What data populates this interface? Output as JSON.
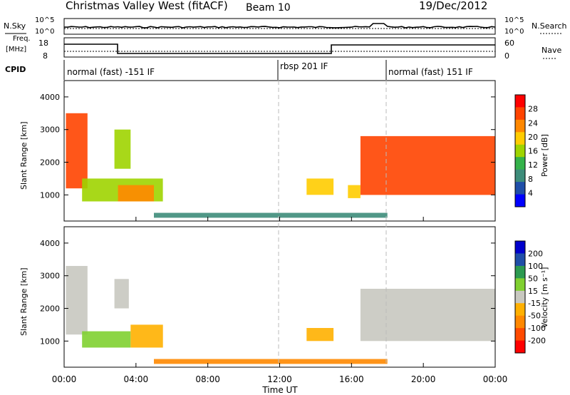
{
  "header": {
    "title": "Christmas Valley West (fitACF)",
    "beam": "Beam 10",
    "date": "19/Dec/2012"
  },
  "nsky_panel": {
    "left_label": "N.Sky",
    "right_label": "N.Search",
    "left_ticks": [
      "10^5",
      "10^0"
    ],
    "right_ticks": [
      "10^5",
      "10^0"
    ]
  },
  "freq_panel": {
    "left_label_1": "Freq.",
    "left_label_2": "[MHz]",
    "right_label": "Nave",
    "left_ticks": [
      "18",
      "8"
    ],
    "right_ticks": [
      "60",
      "0"
    ]
  },
  "cpid": {
    "label": "CPID",
    "modes": [
      "normal (fast) -151 IF",
      "rbsp 201 IF",
      "normal (fast) 151 IF"
    ]
  },
  "colors": {
    "power_scale": [
      "#0000ff",
      "#1f4ea8",
      "#3d8c7a",
      "#34b24a",
      "#9ed400",
      "#ffcc00",
      "#ff8800",
      "#ff4400",
      "#ff0000"
    ],
    "velocity_scale": [
      "#ff0000",
      "#ff4a00",
      "#ff8800",
      "#ffb000",
      "#c8c8c0",
      "#80d030",
      "#2c9a50",
      "#1f4ea8",
      "#0000cc"
    ]
  },
  "chart_data": [
    {
      "type": "heatmap",
      "panel": "power",
      "xlabel": "",
      "ylabel": "Slant Range [km]",
      "ylim": [
        200,
        4500
      ],
      "xlim": [
        "00:00",
        "24:00"
      ],
      "y_ticks": [
        "1000",
        "2000",
        "3000",
        "4000"
      ],
      "colorbar_label": "Power [dB]",
      "colorbar_ticks": [
        "4",
        "8",
        "12",
        "16",
        "20",
        "24",
        "28"
      ],
      "regions": [
        {
          "t": [
            0.1,
            1.3
          ],
          "r": [
            1200,
            3500
          ],
          "value": 26
        },
        {
          "t": [
            2.8,
            3.7
          ],
          "r": [
            1800,
            3000
          ],
          "value": 17
        },
        {
          "t": [
            1.0,
            5.5
          ],
          "r": [
            800,
            1500
          ],
          "value": 14
        },
        {
          "t": [
            3.0,
            5.0
          ],
          "r": [
            800,
            1300
          ],
          "value": 22
        },
        {
          "t": [
            13.5,
            15.0
          ],
          "r": [
            1000,
            1500
          ],
          "value": 20
        },
        {
          "t": [
            15.8,
            16.5
          ],
          "r": [
            900,
            1300
          ],
          "value": 18
        },
        {
          "t": [
            16.5,
            24.0
          ],
          "r": [
            1000,
            2800
          ],
          "value": 28
        },
        {
          "t": [
            5.0,
            18.0
          ],
          "r": [
            300,
            450
          ],
          "value": 8
        }
      ]
    },
    {
      "type": "heatmap",
      "panel": "velocity",
      "xlabel": "Time UT",
      "ylabel": "Slant Range [km]",
      "ylim": [
        200,
        4500
      ],
      "xlim": [
        "00:00",
        "24:00"
      ],
      "x_ticks": [
        "00:00",
        "04:00",
        "08:00",
        "12:00",
        "16:00",
        "20:00",
        "00:00"
      ],
      "y_ticks": [
        "1000",
        "2000",
        "3000",
        "4000"
      ],
      "colorbar_label": "Velocity [m s⁻¹]",
      "colorbar_ticks": [
        "200",
        "100",
        "50",
        "15",
        "-15",
        "-50",
        "-100",
        "-200"
      ],
      "regions": [
        {
          "t": [
            0.1,
            1.3
          ],
          "r": [
            1200,
            3300
          ],
          "value": 0
        },
        {
          "t": [
            2.8,
            3.6
          ],
          "r": [
            2000,
            2900
          ],
          "value": 0
        },
        {
          "t": [
            1.0,
            3.7
          ],
          "r": [
            800,
            1300
          ],
          "value": 30
        },
        {
          "t": [
            3.7,
            5.5
          ],
          "r": [
            800,
            1500
          ],
          "value": -40
        },
        {
          "t": [
            13.5,
            15.0
          ],
          "r": [
            1000,
            1400
          ],
          "value": -40
        },
        {
          "t": [
            16.5,
            24.0
          ],
          "r": [
            1000,
            2600
          ],
          "value": 0
        },
        {
          "t": [
            5.0,
            18.0
          ],
          "r": [
            300,
            450
          ],
          "value": -60
        }
      ]
    }
  ]
}
